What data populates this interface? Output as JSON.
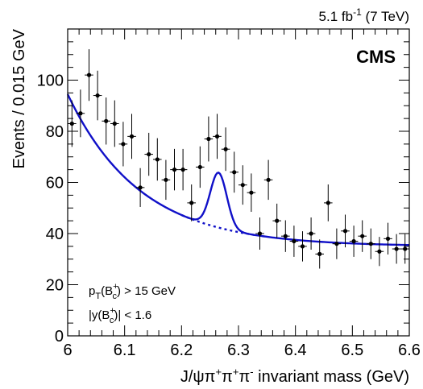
{
  "chart_data": {
    "type": "scatter",
    "lumi_label": {
      "value": "5.1",
      "unit": "fb",
      "sup": "-1",
      "energy": "(7 TeV)"
    },
    "experiment_label": "CMS",
    "xlabel": {
      "prefix": "J/ψπ",
      "s1": "+",
      "m1": "π",
      "s2": "+",
      "m2": "π",
      "s3": "-",
      "suffix": " invariant mass (GeV)"
    },
    "ylabel": "Events / 0.015 GeV",
    "xlim": [
      6.0,
      6.6
    ],
    "ylim": [
      0,
      120
    ],
    "xticks": [
      "6",
      "6.1",
      "6.2",
      "6.3",
      "6.4",
      "6.5",
      "6.6"
    ],
    "xtick_values": [
      6.0,
      6.1,
      6.2,
      6.3,
      6.4,
      6.5,
      6.6
    ],
    "yticks": [
      "0",
      "20",
      "40",
      "60",
      "80",
      "100"
    ],
    "ytick_values": [
      0,
      20,
      40,
      60,
      80,
      100
    ],
    "cuts": [
      {
        "a": "p",
        "asub": "T",
        "b": "(B",
        "bsup": "+",
        "bsub": "c",
        "c": ") > 15 GeV"
      },
      {
        "a": "|y(B",
        "bsup": "+",
        "bsub": "c",
        "c": ")| < 1.6"
      }
    ],
    "bin_width": 0.015,
    "series": [
      {
        "kind": "data",
        "x": [
          6.0075,
          6.0225,
          6.0375,
          6.0525,
          6.0675,
          6.0825,
          6.0975,
          6.1125,
          6.1275,
          6.1425,
          6.1575,
          6.1725,
          6.1875,
          6.2025,
          6.2175,
          6.2325,
          6.2475,
          6.2625,
          6.2775,
          6.2925,
          6.3075,
          6.3225,
          6.3375,
          6.3525,
          6.3675,
          6.3825,
          6.3975,
          6.4125,
          6.4275,
          6.4425,
          6.4575,
          6.4725,
          6.4875,
          6.5025,
          6.5175,
          6.5325,
          6.5475,
          6.5625,
          6.5775,
          6.5925
        ],
        "y": [
          83,
          87,
          102,
          94,
          84,
          83,
          75,
          78,
          58,
          71,
          69,
          61,
          65,
          65,
          52,
          66,
          77,
          78,
          73,
          64,
          59,
          56,
          40,
          61,
          45,
          39,
          37,
          35,
          40,
          32,
          52,
          36,
          41,
          37,
          39,
          36,
          33,
          38,
          34,
          34
        ],
        "yerr": [
          9.1,
          9.3,
          10.1,
          9.7,
          9.2,
          9.1,
          8.7,
          8.8,
          7.6,
          8.4,
          8.3,
          7.8,
          8.1,
          8.1,
          7.2,
          8.1,
          8.8,
          8.8,
          8.5,
          8.0,
          7.7,
          7.5,
          6.3,
          7.8,
          6.7,
          6.2,
          6.1,
          5.9,
          6.3,
          5.7,
          7.2,
          6.0,
          6.4,
          6.1,
          6.2,
          6.0,
          5.7,
          6.2,
          5.8,
          5.8
        ]
      },
      {
        "kind": "fit",
        "background": {
          "x0": 6.0,
          "a": 94.5,
          "c": 35,
          "k": 7.9
        },
        "signal": {
          "mean": 6.265,
          "sigma": 0.0145,
          "amplitude": 21.5
        }
      }
    ]
  }
}
